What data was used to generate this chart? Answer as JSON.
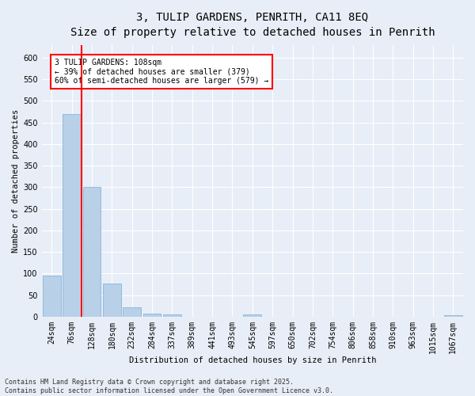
{
  "title_line1": "3, TULIP GARDENS, PENRITH, CA11 8EQ",
  "title_line2": "Size of property relative to detached houses in Penrith",
  "xlabel": "Distribution of detached houses by size in Penrith",
  "ylabel": "Number of detached properties",
  "categories": [
    "24sqm",
    "76sqm",
    "128sqm",
    "180sqm",
    "232sqm",
    "284sqm",
    "337sqm",
    "389sqm",
    "441sqm",
    "493sqm",
    "545sqm",
    "597sqm",
    "650sqm",
    "702sqm",
    "754sqm",
    "806sqm",
    "858sqm",
    "910sqm",
    "963sqm",
    "1015sqm",
    "1067sqm"
  ],
  "values": [
    95,
    470,
    300,
    76,
    22,
    7,
    6,
    0,
    0,
    0,
    5,
    0,
    0,
    0,
    0,
    0,
    0,
    0,
    0,
    0,
    4
  ],
  "bar_color": "#b8d0e8",
  "bar_edge_color": "#7aaed0",
  "vline_color": "red",
  "vline_x": 1.5,
  "annotation_text": "3 TULIP GARDENS: 108sqm\n← 39% of detached houses are smaller (379)\n60% of semi-detached houses are larger (579) →",
  "box_color": "white",
  "box_edge_color": "red",
  "ylim": [
    0,
    630
  ],
  "yticks": [
    0,
    50,
    100,
    150,
    200,
    250,
    300,
    350,
    400,
    450,
    500,
    550,
    600
  ],
  "background_color": "#e8eef7",
  "grid_color": "white",
  "footnote": "Contains HM Land Registry data © Crown copyright and database right 2025.\nContains public sector information licensed under the Open Government Licence v3.0.",
  "title_fontsize": 10,
  "subtitle_fontsize": 9,
  "label_fontsize": 7.5,
  "tick_fontsize": 7,
  "annotation_fontsize": 7
}
